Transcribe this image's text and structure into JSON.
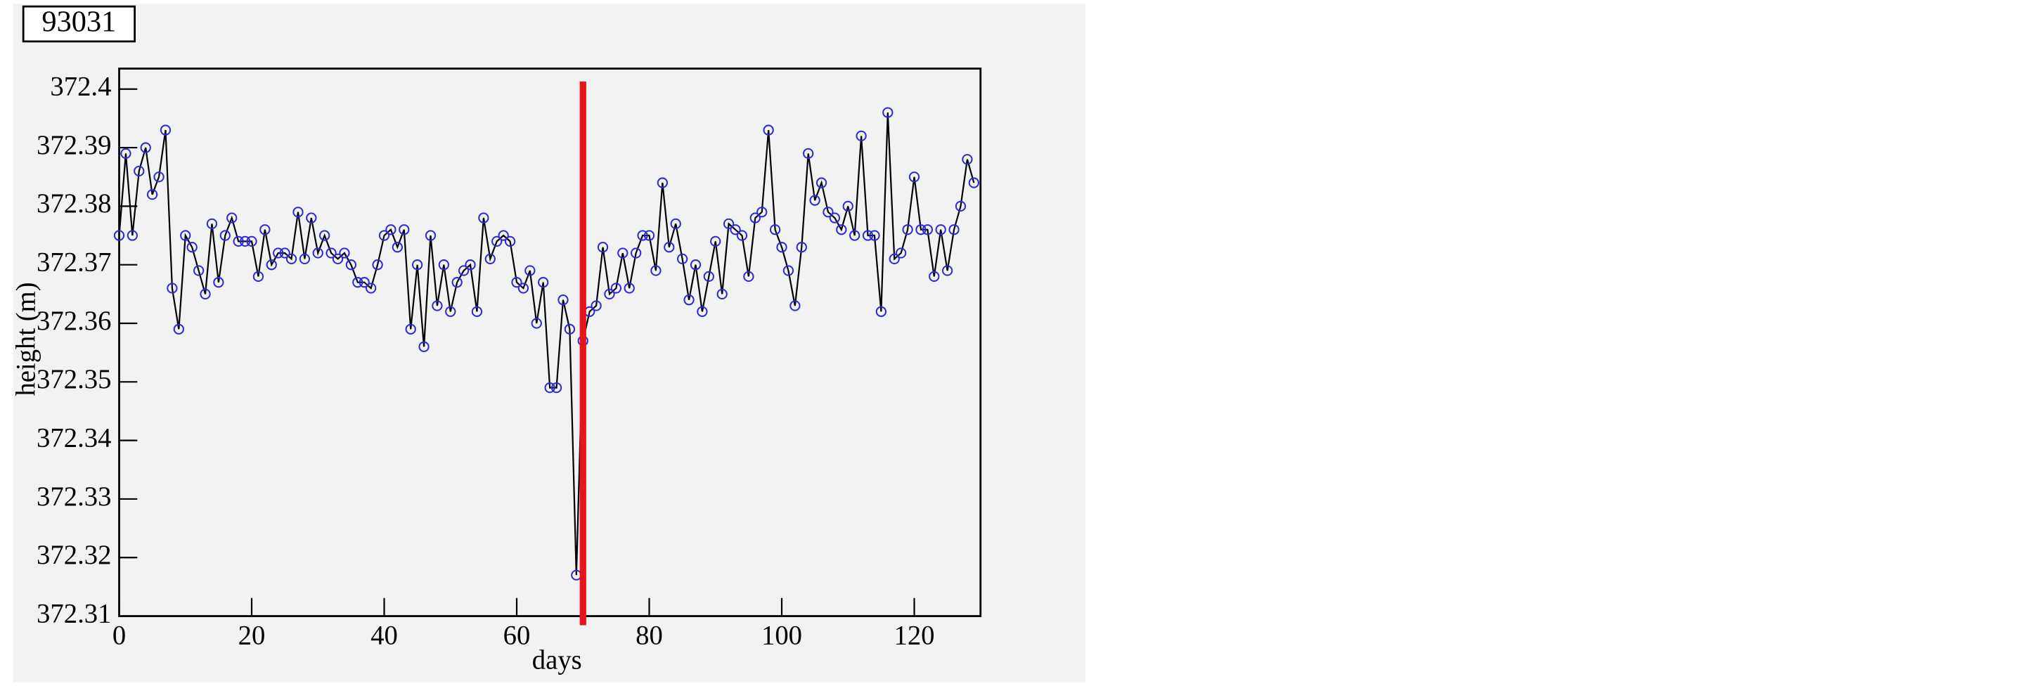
{
  "chart_data": {
    "type": "line",
    "title": "93031",
    "x_label": "days",
    "y_label": "height (m)",
    "x": [
      0,
      1,
      2,
      3,
      4,
      5,
      6,
      7,
      8,
      9,
      10,
      11,
      12,
      13,
      14,
      15,
      16,
      17,
      18,
      19,
      20,
      21,
      22,
      23,
      24,
      25,
      26,
      27,
      28,
      29,
      30,
      31,
      32,
      33,
      34,
      35,
      36,
      37,
      38,
      39,
      40,
      41,
      42,
      43,
      44,
      45,
      46,
      47,
      48,
      49,
      50,
      51,
      52,
      53,
      54,
      55,
      56,
      57,
      58,
      59,
      60,
      61,
      62,
      63,
      64,
      65,
      66,
      67,
      68,
      69,
      70,
      71,
      72,
      73,
      74,
      75,
      76,
      77,
      78,
      79,
      80,
      81,
      82,
      83,
      84,
      85,
      86,
      87,
      88,
      89,
      90,
      91,
      92,
      93,
      94,
      95,
      96,
      97,
      98,
      99,
      100,
      101,
      102,
      103,
      104,
      105,
      106,
      107,
      108,
      109,
      110,
      111,
      112,
      113,
      114,
      115,
      116,
      117,
      118,
      119,
      120,
      121,
      122,
      123,
      124,
      125,
      126,
      127,
      128,
      129
    ],
    "series": [
      {
        "name": "height",
        "color": "#000000",
        "marker_color": "#2b2bd6",
        "values": [
          372.375,
          372.389,
          372.375,
          372.386,
          372.39,
          372.382,
          372.385,
          372.393,
          372.366,
          372.359,
          372.375,
          372.373,
          372.369,
          372.365,
          372.377,
          372.367,
          372.375,
          372.378,
          372.374,
          372.374,
          372.374,
          372.368,
          372.376,
          372.37,
          372.372,
          372.372,
          372.371,
          372.379,
          372.371,
          372.378,
          372.372,
          372.375,
          372.372,
          372.371,
          372.372,
          372.37,
          372.367,
          372.367,
          372.366,
          372.37,
          372.375,
          372.376,
          372.373,
          372.376,
          372.359,
          372.37,
          372.356,
          372.375,
          372.363,
          372.37,
          372.362,
          372.367,
          372.369,
          372.37,
          372.362,
          372.378,
          372.371,
          372.374,
          372.375,
          372.374,
          372.367,
          372.366,
          372.369,
          372.36,
          372.367,
          372.349,
          372.349,
          372.364,
          372.359,
          372.317,
          372.357,
          372.362,
          372.363,
          372.373,
          372.365,
          372.366,
          372.372,
          372.366,
          372.372,
          372.375,
          372.375,
          372.369,
          372.384,
          372.373,
          372.377,
          372.371,
          372.364,
          372.37,
          372.362,
          372.368,
          372.374,
          372.365,
          372.377,
          372.376,
          372.375,
          372.368,
          372.378,
          372.379,
          372.393,
          372.376,
          372.373,
          372.369,
          372.363,
          372.373,
          372.389,
          372.381,
          372.384,
          372.379,
          372.378,
          372.376,
          372.38,
          372.375,
          372.392,
          372.375,
          372.375,
          372.362,
          372.396,
          372.371,
          372.372,
          372.376,
          372.385,
          372.376,
          372.376,
          372.368,
          372.376,
          372.369,
          372.376,
          372.38,
          372.388,
          372.384
        ]
      }
    ],
    "xlim": [
      0,
      130
    ],
    "xticks": [
      0,
      20,
      40,
      60,
      80,
      100,
      120
    ],
    "ylim": [
      372.31,
      372.4035
    ],
    "yticks": [
      372.31,
      372.32,
      372.33,
      372.34,
      372.35,
      372.36,
      372.37,
      372.38,
      372.39,
      372.4
    ],
    "vline": {
      "value": 70,
      "color": "#e8141b"
    }
  }
}
